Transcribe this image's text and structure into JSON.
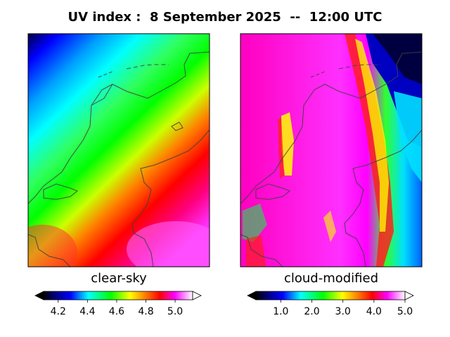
{
  "title": "UV index :  8 September 2025  --  12:00 UTC",
  "panels": [
    {
      "label": "clear-sky",
      "colorbar": {
        "min": 4.1,
        "max": 5.12,
        "ticks": [
          4.2,
          4.4,
          4.6,
          4.8,
          5.0
        ],
        "tick_labels": [
          "4.2",
          "4.4",
          "4.6",
          "4.8",
          "5.0"
        ],
        "extend": "both"
      }
    },
    {
      "label": "cloud-modified",
      "colorbar": {
        "min": 0.2,
        "max": 5.0,
        "ticks": [
          1.0,
          2.0,
          3.0,
          4.0,
          5.0
        ],
        "tick_labels": [
          "1.0",
          "2.0",
          "3.0",
          "4.0",
          "5.0"
        ],
        "extend": "both"
      }
    }
  ],
  "colormap": "gist_ncar-like",
  "colors": {
    "outline": "#404040",
    "frame": "#000000"
  }
}
